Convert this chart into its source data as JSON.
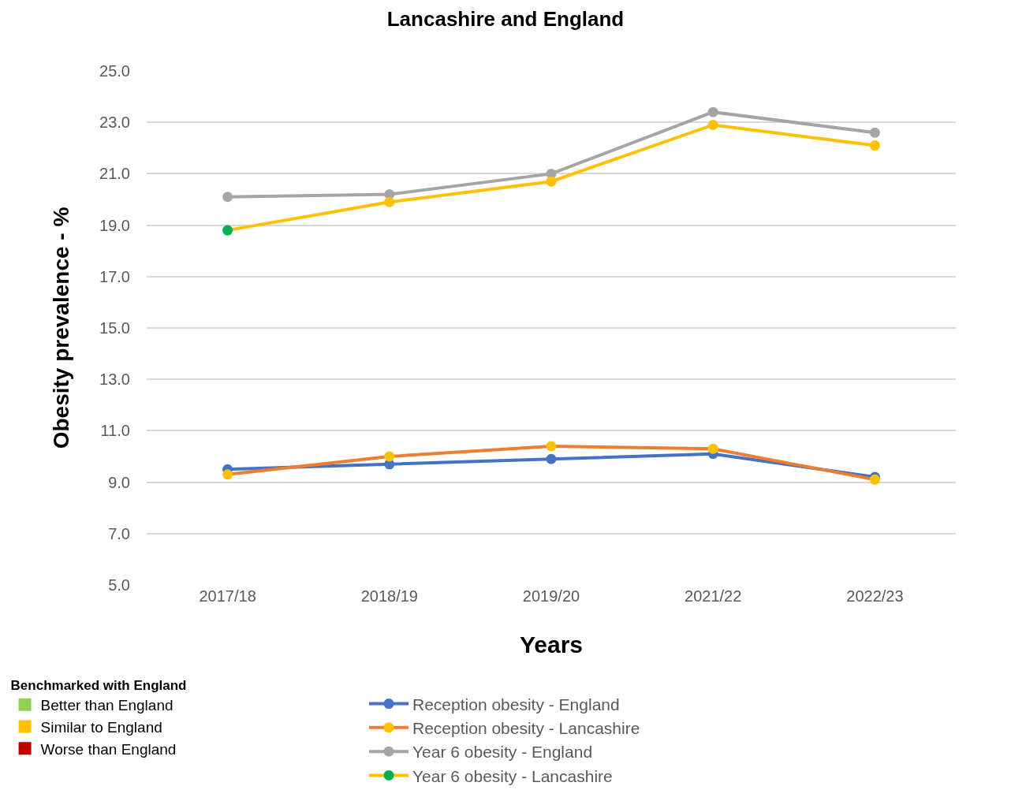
{
  "chart_data": {
    "type": "line",
    "title": "Lancashire and England",
    "xlabel": "Years",
    "ylabel": "Obesity prevalence - %",
    "categories": [
      "2017/18",
      "2018/19",
      "2019/20",
      "2021/22",
      "2022/23"
    ],
    "series": [
      {
        "name": "Reception obesity - England",
        "color": "#4472c4",
        "values": [
          9.5,
          9.7,
          9.9,
          10.1,
          9.2
        ]
      },
      {
        "name": "Reception obesity - Lancashire",
        "color": "#ed7d31",
        "colors": [
          "#ffc000",
          "#ffc000",
          "#ffc000",
          "#ffc000",
          "#ffc000"
        ],
        "values": [
          9.3,
          10.0,
          10.4,
          10.3,
          9.1
        ]
      },
      {
        "name": "Year 6 obesity - England",
        "color": "#a5a5a5",
        "values": [
          20.1,
          20.2,
          21.0,
          23.4,
          22.6
        ]
      },
      {
        "name": "Year 6 obesity - Lancashire",
        "color": "#ffc000",
        "colors": [
          "#00b050",
          "#ffc000",
          "#ffc000",
          "#ffc000",
          "#ffc000"
        ],
        "values": [
          18.8,
          19.9,
          20.7,
          22.9,
          22.1
        ]
      },
      {
        "name": "Better than England",
        "color": "#92d050",
        "marker": "square",
        "values": [
          null,
          null,
          null,
          null,
          null
        ]
      },
      {
        "name": "Similar to England",
        "color": "#ffc000",
        "marker": "square",
        "values": [
          null,
          null,
          null,
          null,
          null
        ]
      },
      {
        "name": "Worse than England",
        "color": "#c00000",
        "marker": "square",
        "values": [
          null,
          null,
          null,
          null,
          null
        ]
      }
    ],
    "legend_title": "Benchmarked with England",
    "ylim": [
      5,
      25
    ],
    "yticks": [
      {
        "value": 5,
        "label": "5.0"
      },
      {
        "value": 7,
        "label": "7.0"
      },
      {
        "value": 9,
        "label": "9.0"
      },
      {
        "value": 11,
        "label": "11.0"
      },
      {
        "value": 13,
        "label": "13.0"
      },
      {
        "value": 15,
        "label": "15.0"
      },
      {
        "value": 17,
        "label": "17.0"
      },
      {
        "value": 19,
        "label": "19.0"
      },
      {
        "value": 21,
        "label": "21.0"
      },
      {
        "value": 23,
        "label": "23.0"
      },
      {
        "value": 25,
        "label": "25.0"
      }
    ],
    "grid": "y",
    "legend": "bottom",
    "marker": "circle",
    "line_style": "solid"
  }
}
